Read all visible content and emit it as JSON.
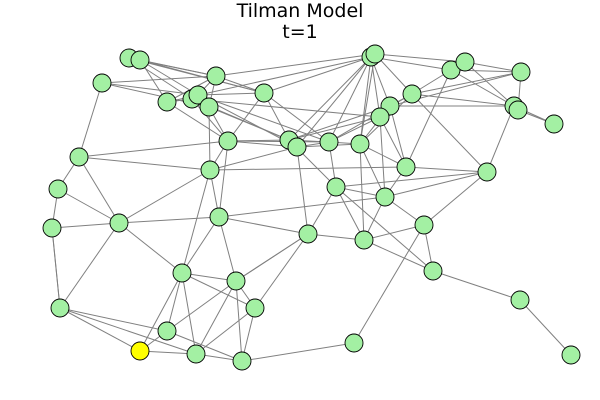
{
  "title": "Tilman Model",
  "subtitle": "t=1",
  "colors": {
    "node_fill": "#a3f0a3",
    "node_highlight": "#ffff00",
    "node_stroke": "#000000",
    "edge": "#808080",
    "background": "#ffffff"
  },
  "chart_data": {
    "type": "network",
    "node_count": 52,
    "highlighted_node_count": 1
  }
}
